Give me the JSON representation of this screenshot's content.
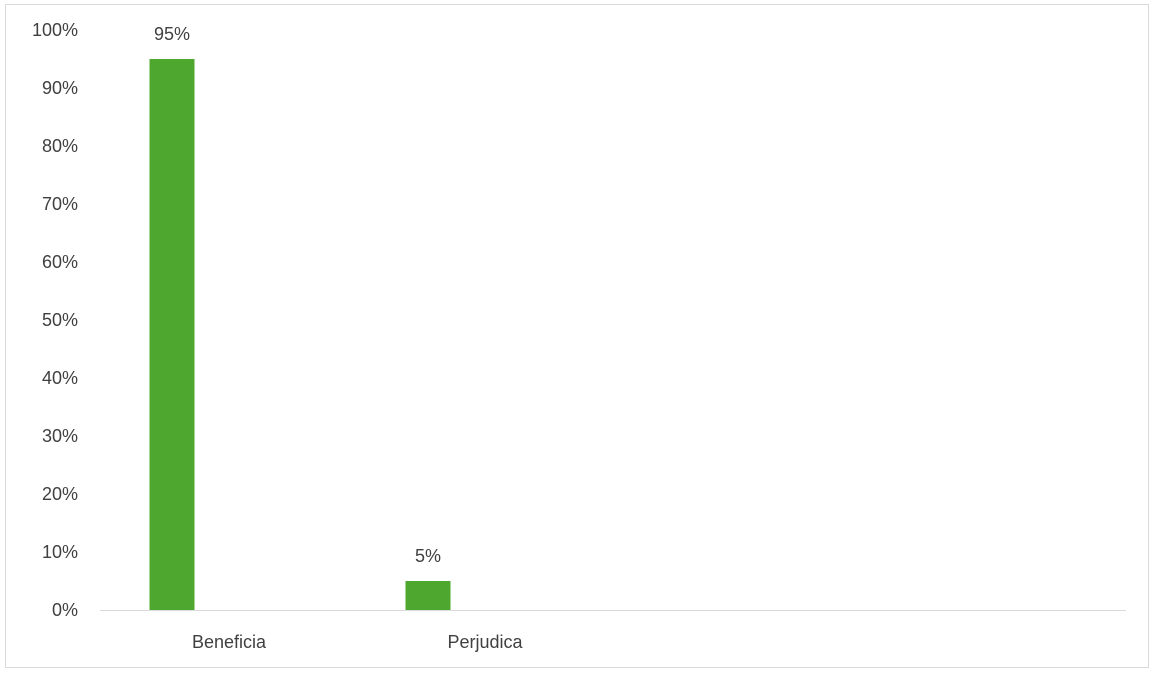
{
  "chart_data": {
    "type": "bar",
    "title": "",
    "xlabel": "",
    "ylabel": "",
    "categories": [
      "Beneficia",
      "Perjudica"
    ],
    "values": [
      95,
      5
    ],
    "data_labels": [
      "95%",
      "5%"
    ],
    "ylim": [
      0,
      100
    ],
    "y_ticks": [
      0,
      10,
      20,
      30,
      40,
      50,
      60,
      70,
      80,
      90,
      100
    ],
    "y_tick_labels": [
      "0%",
      "10%",
      "20%",
      "30%",
      "40%",
      "50%",
      "60%",
      "70%",
      "80%",
      "90%",
      "100%"
    ],
    "grid": false,
    "legend": "none",
    "bar_color": "#4ea72e"
  }
}
